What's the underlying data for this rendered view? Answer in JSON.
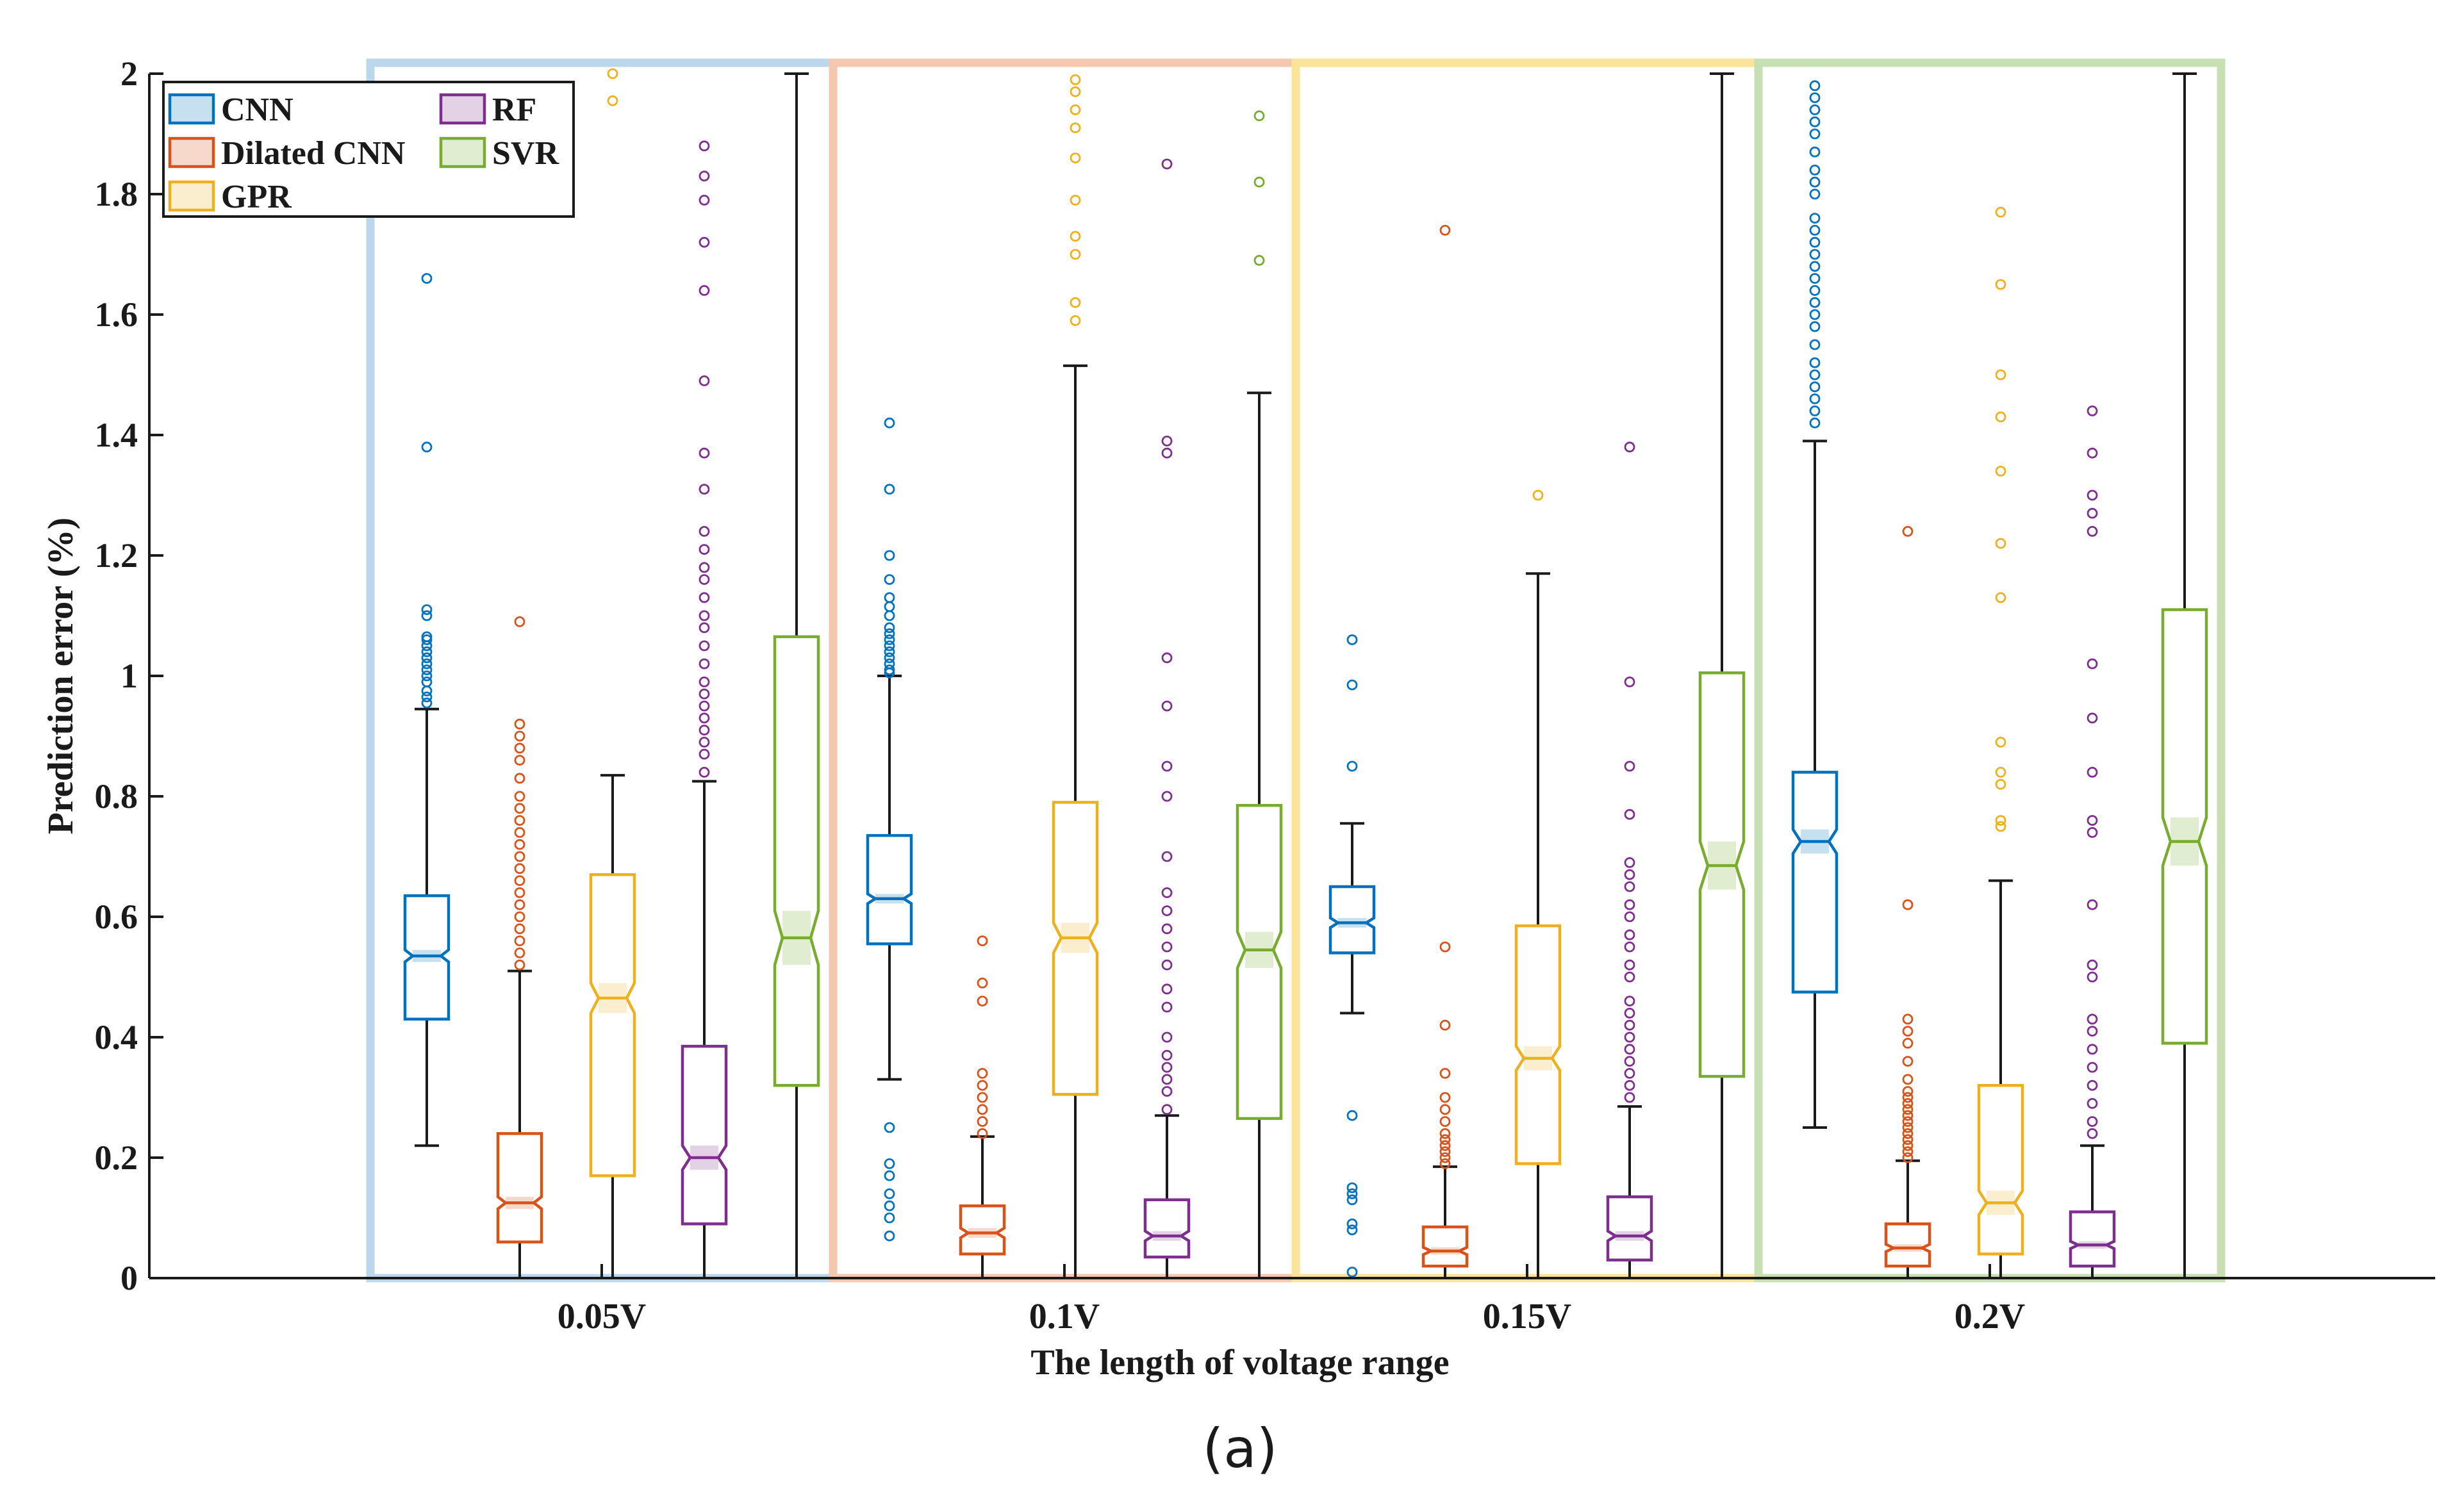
{
  "chart_data": {
    "type": "boxplot",
    "title": "",
    "caption": "(a)",
    "xlabel": "The length of voltage range",
    "ylabel": "Prediction error (%)",
    "ylim": [
      0,
      2
    ],
    "yticks": [
      0,
      0.2,
      0.4,
      0.6,
      0.8,
      1,
      1.2,
      1.4,
      1.6,
      1.8,
      2
    ],
    "ytick_labels": [
      "0",
      "0.2",
      "0.4",
      "0.6",
      "0.8",
      "1",
      "1.2",
      "1.4",
      "1.6",
      "1.8",
      "2"
    ],
    "categories": [
      "0.05V",
      "0.1V",
      "0.15V",
      "0.2V"
    ],
    "legend_position": "top-left",
    "group_frame_colors": [
      "#bcd7ec",
      "#f4c7ae",
      "#fbe49a",
      "#c6e0b4"
    ],
    "series": [
      {
        "name": "CNN",
        "color": "#0072BD",
        "boxes": [
          {
            "q1": 0.43,
            "median": 0.535,
            "q3": 0.635,
            "whisker_low": 0.22,
            "whisker_high": 0.945,
            "notch": 0.01,
            "outliers": [
              0.955,
              0.965,
              0.975,
              0.99,
              1.0,
              1.01,
              1.02,
              1.03,
              1.04,
              1.05,
              1.06,
              1.065,
              1.1,
              1.11,
              1.38,
              1.66
            ]
          },
          {
            "q1": 0.555,
            "median": 0.63,
            "q3": 0.735,
            "whisker_low": 0.33,
            "whisker_high": 1.0,
            "notch": 0.008,
            "outliers": [
              0.07,
              0.1,
              0.12,
              0.14,
              0.17,
              0.19,
              0.25,
              1.005,
              1.01,
              1.02,
              1.03,
              1.04,
              1.05,
              1.06,
              1.07,
              1.08,
              1.1,
              1.115,
              1.13,
              1.16,
              1.2,
              1.31,
              1.42
            ]
          },
          {
            "q1": 0.54,
            "median": 0.59,
            "q3": 0.65,
            "whisker_low": 0.44,
            "whisker_high": 0.755,
            "notch": 0.008,
            "outliers": [
              0.01,
              0.08,
              0.09,
              0.13,
              0.14,
              0.15,
              0.27,
              0.85,
              0.985,
              1.06
            ]
          },
          {
            "q1": 0.475,
            "median": 0.725,
            "q3": 0.84,
            "whisker_low": 0.25,
            "whisker_high": 1.39,
            "notch": 0.02,
            "outliers": [
              1.42,
              1.44,
              1.46,
              1.48,
              1.5,
              1.52,
              1.55,
              1.58,
              1.6,
              1.62,
              1.64,
              1.66,
              1.68,
              1.7,
              1.72,
              1.74,
              1.76,
              1.8,
              1.82,
              1.84,
              1.87,
              1.9,
              1.92,
              1.94,
              1.96,
              1.98
            ]
          }
        ]
      },
      {
        "name": "Dilated CNN",
        "color": "#D95319",
        "boxes": [
          {
            "q1": 0.06,
            "median": 0.125,
            "q3": 0.24,
            "whisker_low": 0.0,
            "whisker_high": 0.51,
            "notch": 0.01,
            "outliers": [
              0.52,
              0.54,
              0.56,
              0.58,
              0.6,
              0.62,
              0.64,
              0.66,
              0.68,
              0.7,
              0.72,
              0.74,
              0.76,
              0.78,
              0.8,
              0.83,
              0.86,
              0.88,
              0.9,
              0.92,
              1.09
            ]
          },
          {
            "q1": 0.04,
            "median": 0.075,
            "q3": 0.12,
            "whisker_low": 0.0,
            "whisker_high": 0.235,
            "notch": 0.008,
            "outliers": [
              0.24,
              0.26,
              0.28,
              0.3,
              0.32,
              0.34,
              0.46,
              0.49,
              0.56
            ]
          },
          {
            "q1": 0.02,
            "median": 0.045,
            "q3": 0.085,
            "whisker_low": 0.0,
            "whisker_high": 0.185,
            "notch": 0.006,
            "outliers": [
              0.19,
              0.2,
              0.21,
              0.22,
              0.23,
              0.24,
              0.26,
              0.28,
              0.3,
              0.34,
              0.42,
              0.55,
              1.74
            ]
          },
          {
            "q1": 0.02,
            "median": 0.05,
            "q3": 0.09,
            "whisker_low": 0.0,
            "whisker_high": 0.195,
            "notch": 0.006,
            "outliers": [
              0.2,
              0.21,
              0.22,
              0.23,
              0.24,
              0.25,
              0.26,
              0.27,
              0.28,
              0.29,
              0.3,
              0.31,
              0.33,
              0.36,
              0.39,
              0.41,
              0.43,
              0.62,
              1.24
            ]
          }
        ]
      },
      {
        "name": "GPR",
        "color": "#EDB120",
        "boxes": [
          {
            "q1": 0.17,
            "median": 0.465,
            "q3": 0.67,
            "whisker_low": 0.0,
            "whisker_high": 0.835,
            "notch": 0.025,
            "outliers": [
              1.955,
              2.0
            ]
          },
          {
            "q1": 0.305,
            "median": 0.565,
            "q3": 0.79,
            "whisker_low": 0.0,
            "whisker_high": 1.515,
            "notch": 0.025,
            "outliers": [
              1.59,
              1.62,
              1.7,
              1.73,
              1.79,
              1.86,
              1.91,
              1.94,
              1.97,
              1.99
            ]
          },
          {
            "q1": 0.19,
            "median": 0.365,
            "q3": 0.585,
            "whisker_low": 0.0,
            "whisker_high": 1.17,
            "notch": 0.02,
            "outliers": [
              1.3
            ]
          },
          {
            "q1": 0.04,
            "median": 0.125,
            "q3": 0.32,
            "whisker_low": 0.0,
            "whisker_high": 0.66,
            "notch": 0.02,
            "outliers": [
              0.75,
              0.76,
              0.82,
              0.84,
              0.89,
              1.13,
              1.22,
              1.34,
              1.43,
              1.5,
              1.65,
              1.77
            ]
          }
        ]
      },
      {
        "name": "RF",
        "color": "#7E2F8E",
        "boxes": [
          {
            "q1": 0.09,
            "median": 0.2,
            "q3": 0.385,
            "whisker_low": 0.0,
            "whisker_high": 0.825,
            "notch": 0.02,
            "outliers": [
              0.84,
              0.87,
              0.89,
              0.91,
              0.93,
              0.95,
              0.97,
              0.99,
              1.02,
              1.05,
              1.08,
              1.1,
              1.13,
              1.16,
              1.18,
              1.21,
              1.24,
              1.31,
              1.37,
              1.49,
              1.64,
              1.72,
              1.79,
              1.83,
              1.88
            ]
          },
          {
            "q1": 0.035,
            "median": 0.07,
            "q3": 0.13,
            "whisker_low": 0.0,
            "whisker_high": 0.27,
            "notch": 0.008,
            "outliers": [
              0.28,
              0.31,
              0.33,
              0.35,
              0.37,
              0.4,
              0.45,
              0.48,
              0.52,
              0.55,
              0.58,
              0.61,
              0.64,
              0.7,
              0.8,
              0.85,
              0.95,
              1.03,
              1.37,
              1.39,
              1.85
            ]
          },
          {
            "q1": 0.03,
            "median": 0.07,
            "q3": 0.135,
            "whisker_low": 0.0,
            "whisker_high": 0.285,
            "notch": 0.008,
            "outliers": [
              0.3,
              0.32,
              0.34,
              0.36,
              0.38,
              0.4,
              0.42,
              0.44,
              0.46,
              0.5,
              0.52,
              0.55,
              0.57,
              0.6,
              0.62,
              0.65,
              0.67,
              0.69,
              0.77,
              0.85,
              0.99,
              1.38
            ]
          },
          {
            "q1": 0.02,
            "median": 0.055,
            "q3": 0.11,
            "whisker_low": 0.0,
            "whisker_high": 0.22,
            "notch": 0.006,
            "outliers": [
              0.24,
              0.26,
              0.29,
              0.32,
              0.35,
              0.38,
              0.41,
              0.43,
              0.5,
              0.52,
              0.62,
              0.74,
              0.76,
              0.84,
              0.93,
              1.02,
              1.24,
              1.27,
              1.3,
              1.37,
              1.44
            ]
          }
        ]
      },
      {
        "name": "SVR",
        "color": "#77AC30",
        "boxes": [
          {
            "q1": 0.32,
            "median": 0.565,
            "q3": 1.065,
            "whisker_low": 0.0,
            "whisker_high": 2.0,
            "notch": 0.045,
            "outliers": []
          },
          {
            "q1": 0.265,
            "median": 0.545,
            "q3": 0.785,
            "whisker_low": 0.0,
            "whisker_high": 1.47,
            "notch": 0.03,
            "outliers": [
              1.69,
              1.82,
              1.93
            ]
          },
          {
            "q1": 0.335,
            "median": 0.685,
            "q3": 1.005,
            "whisker_low": 0.0,
            "whisker_high": 2.0,
            "notch": 0.04,
            "outliers": []
          },
          {
            "q1": 0.39,
            "median": 0.725,
            "q3": 1.11,
            "whisker_low": 0.0,
            "whisker_high": 2.0,
            "notch": 0.04,
            "outliers": []
          }
        ]
      }
    ]
  }
}
